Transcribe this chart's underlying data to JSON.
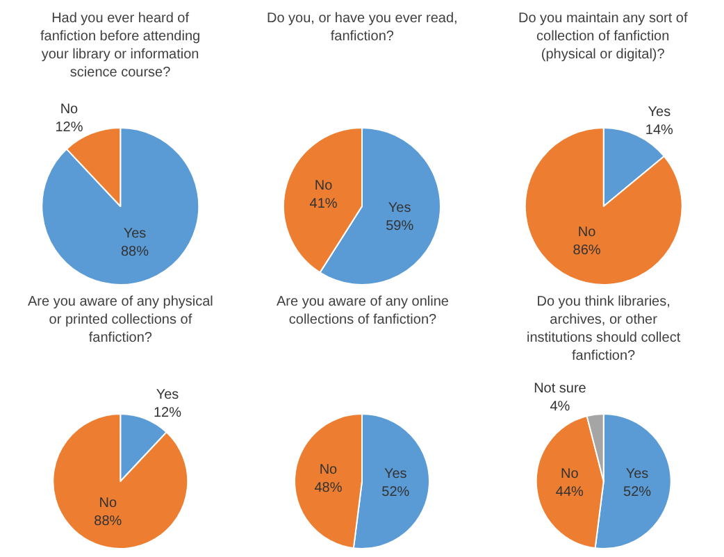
{
  "chart_data": [
    {
      "type": "pie",
      "title": "Had you ever heard of fanfiction before attending your library or information science course?",
      "categories": [
        "Yes",
        "No"
      ],
      "values": [
        88,
        12
      ],
      "colors": [
        "#5b9bd5",
        "#ed7d31"
      ],
      "value_labels": [
        "88%",
        "12%"
      ]
    },
    {
      "type": "pie",
      "title": "Do you, or have you ever read, fanfiction?",
      "categories": [
        "Yes",
        "No"
      ],
      "values": [
        59,
        41
      ],
      "colors": [
        "#5b9bd5",
        "#ed7d31"
      ],
      "value_labels": [
        "59%",
        "41%"
      ]
    },
    {
      "type": "pie",
      "title": "Do you maintain any sort of collection of fanfiction (physical or digital)?",
      "categories": [
        "Yes",
        "No"
      ],
      "values": [
        14,
        86
      ],
      "colors": [
        "#5b9bd5",
        "#ed7d31"
      ],
      "value_labels": [
        "14%",
        "86%"
      ]
    },
    {
      "type": "pie",
      "title": "Are you aware of any physical or printed collections of fanfiction?",
      "categories": [
        "Yes",
        "No"
      ],
      "values": [
        12,
        88
      ],
      "colors": [
        "#5b9bd5",
        "#ed7d31"
      ],
      "value_labels": [
        "12%",
        "88%"
      ]
    },
    {
      "type": "pie",
      "title": "Are you aware of any online collections of fanfiction?",
      "categories": [
        "Yes",
        "No"
      ],
      "values": [
        52,
        48
      ],
      "colors": [
        "#5b9bd5",
        "#ed7d31"
      ],
      "value_labels": [
        "52%",
        "48%"
      ]
    },
    {
      "type": "pie",
      "title": "Do you think libraries, archives, or other institutions should collect fanfiction?",
      "categories": [
        "Yes",
        "No",
        "Not sure"
      ],
      "values": [
        52,
        44,
        4
      ],
      "colors": [
        "#5b9bd5",
        "#ed7d31",
        "#a5a5a5"
      ],
      "value_labels": [
        "52%",
        "44%",
        "4%"
      ]
    }
  ]
}
